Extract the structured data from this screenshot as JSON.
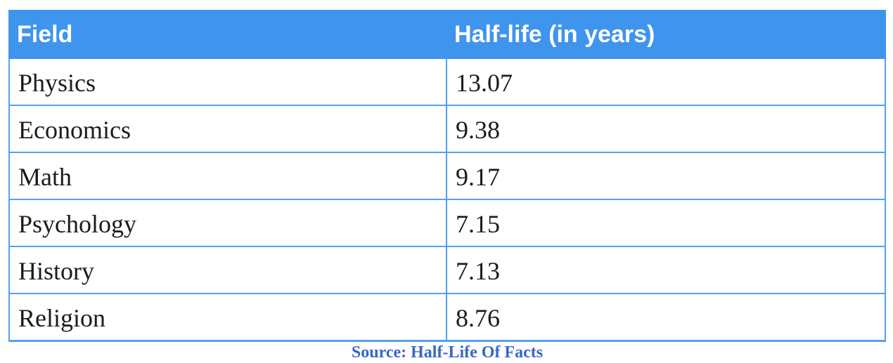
{
  "table": {
    "header": {
      "field": "Field",
      "half_life": "Half-life (in years)"
    },
    "rows": [
      {
        "field": "Physics",
        "half_life": "13.07"
      },
      {
        "field": "Economics",
        "half_life": "9.38"
      },
      {
        "field": "Math",
        "half_life": "9.17"
      },
      {
        "field": "Psychology",
        "half_life": "7.15"
      },
      {
        "field": "History",
        "half_life": "7.13"
      },
      {
        "field": "Religion",
        "half_life": "8.76"
      }
    ]
  },
  "caption": "Source: Half-Life Of Facts",
  "colors": {
    "header_bg": "#3f94ee",
    "header_text": "#ffffff",
    "grid_border": "#54a0ef",
    "body_text": "#1b1b1b",
    "caption_link": "#3b66c8"
  },
  "chart_data": {
    "type": "table",
    "title": "",
    "columns": [
      "Field",
      "Half-life (in years)"
    ],
    "categories": [
      "Physics",
      "Economics",
      "Math",
      "Psychology",
      "History",
      "Religion"
    ],
    "values": [
      13.07,
      9.38,
      9.17,
      7.15,
      7.13,
      8.76
    ],
    "source_caption": "Source: Half-Life Of Facts",
    "layout_hints": {
      "header_background": "#3f94ee",
      "grid": "on",
      "column_split_ratio": 0.5
    }
  }
}
